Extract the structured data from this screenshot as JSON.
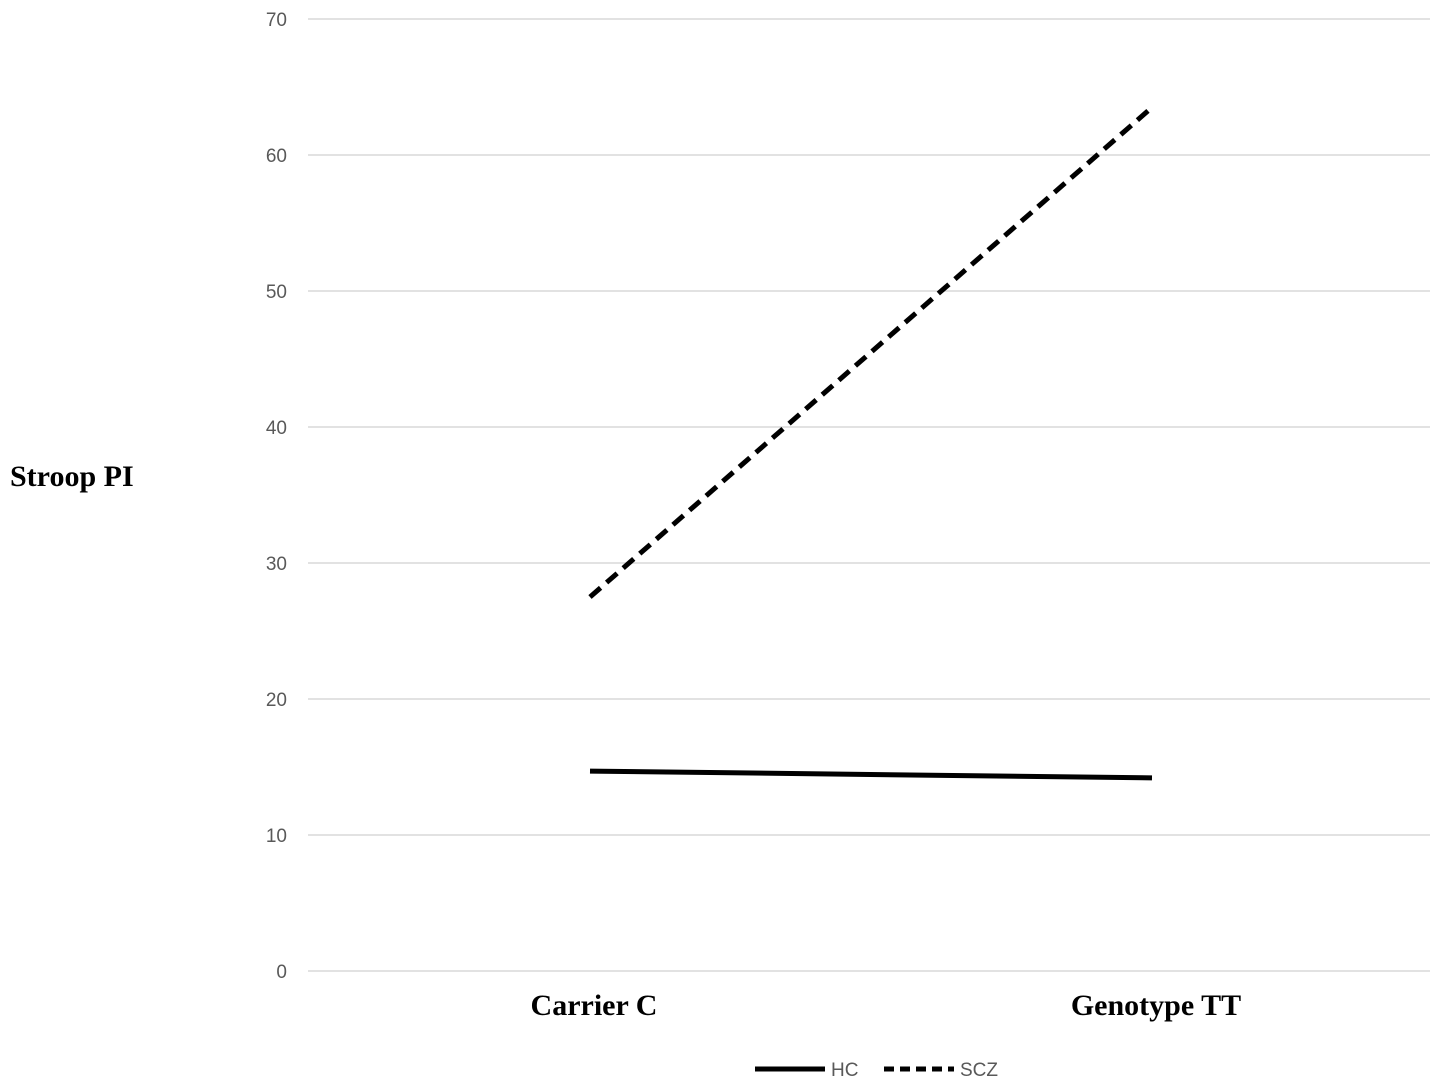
{
  "chart_data": {
    "type": "line",
    "title": "",
    "xlabel": "",
    "ylabel": "Stroop PI",
    "categories": [
      "Carrier C",
      "Genotype TT"
    ],
    "series": [
      {
        "name": "HC",
        "values": [
          14.7,
          14.2
        ],
        "color": "#000000",
        "dash": "solid"
      },
      {
        "name": "SCZ",
        "values": [
          27.5,
          63.5
        ],
        "color": "#000000",
        "dash": "dashed"
      }
    ],
    "ylim": [
      0,
      70
    ],
    "yticks": [
      0,
      10,
      20,
      30,
      40,
      50,
      60,
      70
    ],
    "grid": true,
    "legend_position": "bottom"
  }
}
